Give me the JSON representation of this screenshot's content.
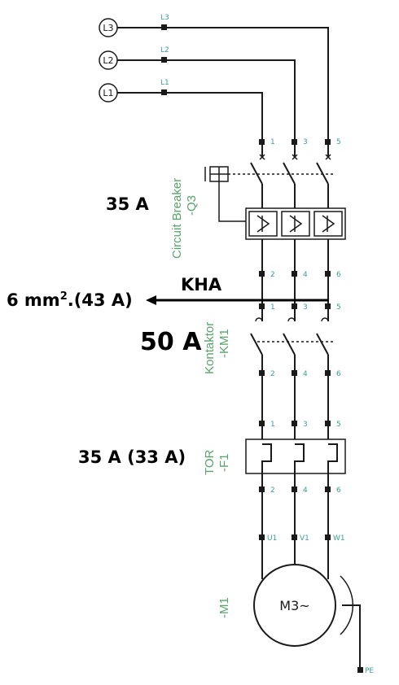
{
  "colors": {
    "label": "#3a9f96",
    "device": "#5aa36a",
    "line": "#1a1a1a"
  },
  "phases": {
    "l1": "L1",
    "l2": "L2",
    "l3": "L3"
  },
  "terminals": {
    "t1": "1",
    "t2": "2",
    "t3": "3",
    "t4": "4",
    "t5": "5",
    "t6": "6",
    "u1": "U1",
    "v1": "V1",
    "w1": "W1",
    "pe": "PE"
  },
  "q3": {
    "name": "Circuit Breaker",
    "tag": "-Q3",
    "rating": "35 A"
  },
  "km1": {
    "name": "Kontaktor",
    "tag": "-KM1",
    "rating": "50 A"
  },
  "f1": {
    "name": "TOR",
    "tag": "-F1",
    "rating": "35 A (33 A)"
  },
  "m1": {
    "tag": "-M1",
    "symbol": "M3~"
  },
  "cable": {
    "name": "KHA",
    "size": "6 mm",
    "sup": "2",
    "rating": ".(43 A)"
  }
}
